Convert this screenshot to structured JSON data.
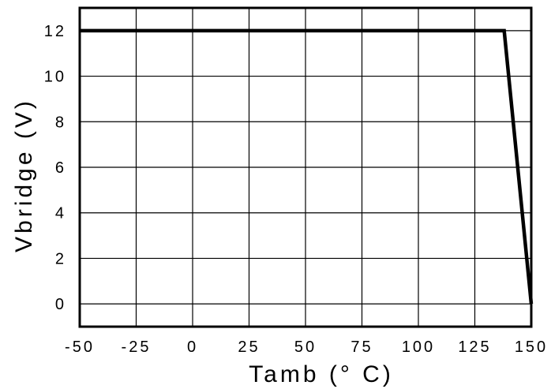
{
  "chart_data": {
    "type": "line",
    "title": "",
    "xlabel": "Tamb (° C)",
    "ylabel": "Vbridge (V)",
    "xlim": [
      -50,
      150
    ],
    "ylim": [
      -1,
      13
    ],
    "x_ticks": [
      -50,
      -25,
      0,
      25,
      50,
      75,
      100,
      125,
      150
    ],
    "x_tick_labels": [
      "-50",
      "-25",
      "0",
      "25",
      "50",
      "75",
      "100",
      "125",
      "150"
    ],
    "y_ticks": [
      0,
      2,
      4,
      6,
      8,
      10,
      12
    ],
    "y_tick_labels": [
      "0",
      "2",
      "4",
      "6",
      "8",
      "10",
      "12"
    ],
    "grid": true,
    "series": [
      {
        "x": [
          -50,
          138,
          150
        ],
        "y": [
          12,
          12,
          0
        ]
      }
    ]
  }
}
